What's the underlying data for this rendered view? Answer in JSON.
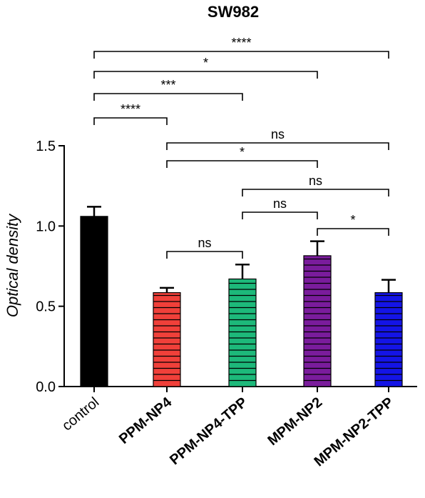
{
  "chart_data": {
    "type": "bar",
    "title": "SW982",
    "ylabel": "Optical density",
    "xlabel": "",
    "ylim": [
      0,
      1.5
    ],
    "yticks": [
      "0.0",
      "0.5",
      "1.0",
      "1.5"
    ],
    "categories": [
      "control",
      "PPM-NP4",
      "PPM-NP4-TPP",
      "MPM-NP2",
      "MPM-NP2-TPP"
    ],
    "category_bold": [
      false,
      true,
      true,
      true,
      true
    ],
    "values": [
      1.06,
      0.585,
      0.67,
      0.815,
      0.585
    ],
    "errors": [
      0.06,
      0.03,
      0.09,
      0.09,
      0.08
    ],
    "colors": [
      "#000000",
      "#f0403a",
      "#1db97a",
      "#7a1c9c",
      "#1414e6"
    ],
    "hatched": [
      false,
      true,
      true,
      true,
      true
    ],
    "significance": [
      {
        "from": 0,
        "to": 4,
        "label": "****"
      },
      {
        "from": 0,
        "to": 3,
        "label": "*"
      },
      {
        "from": 0,
        "to": 2,
        "label": "***"
      },
      {
        "from": 0,
        "to": 1,
        "label": "****"
      },
      {
        "from": 1,
        "to": 4,
        "label": "ns"
      },
      {
        "from": 1,
        "to": 3,
        "label": "*"
      },
      {
        "from": 2,
        "to": 4,
        "label": "ns"
      },
      {
        "from": 2,
        "to": 3,
        "label": "ns"
      },
      {
        "from": 3,
        "to": 4,
        "label": "*"
      },
      {
        "from": 1,
        "to": 2,
        "label": "ns"
      }
    ]
  }
}
